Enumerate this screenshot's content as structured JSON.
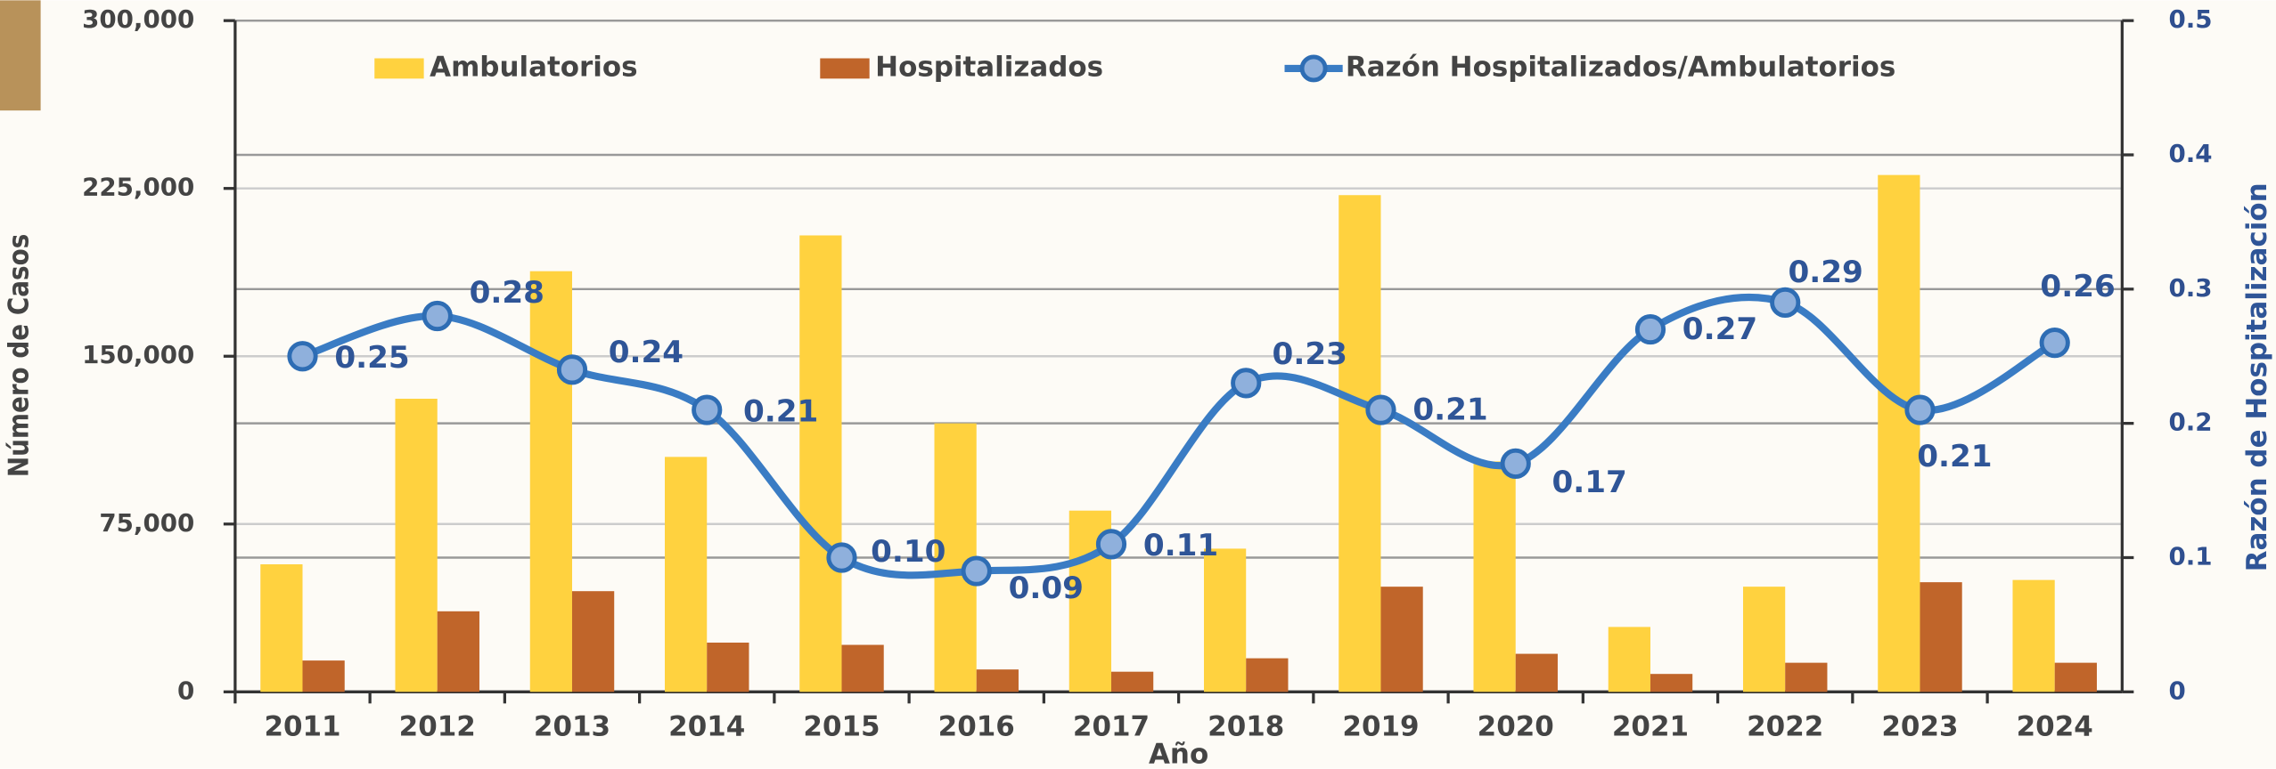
{
  "chart_data": {
    "type": "bar-line",
    "x_label": "Año",
    "y_label": "Número de Casos",
    "y2_label": "Razón de Hospitalización",
    "categories": [
      "2011",
      "2012",
      "2013",
      "2014",
      "2015",
      "2016",
      "2017",
      "2018",
      "2019",
      "2020",
      "2021",
      "2022",
      "2023",
      "2024"
    ],
    "series": [
      {
        "name": "Ambulatorios",
        "type": "bar",
        "color": "#ffd23f",
        "values": [
          57000,
          131000,
          188000,
          105000,
          204000,
          120000,
          81000,
          64000,
          222000,
          103000,
          29000,
          47000,
          231000,
          50000
        ]
      },
      {
        "name": "Hospitalizados",
        "type": "bar",
        "color": "#c0652a",
        "values": [
          14000,
          36000,
          45000,
          22000,
          21000,
          10000,
          9000,
          15000,
          47000,
          17000,
          8000,
          13000,
          49000,
          13000
        ]
      },
      {
        "name": "Razón Hospitalizados/Ambulatorios",
        "type": "line",
        "axis": "y2",
        "color": "#3a7cc4",
        "values": [
          0.25,
          0.28,
          0.24,
          0.21,
          0.1,
          0.09,
          0.11,
          0.23,
          0.21,
          0.17,
          0.27,
          0.29,
          0.21,
          0.26
        ],
        "value_labels": [
          "0.25",
          "0.28",
          "0.24",
          "0.21",
          "0.10",
          "0.09",
          "0.11",
          "0.23",
          "0.21",
          "0.17",
          "0.27",
          "0.29",
          "0.21",
          "0.26"
        ]
      }
    ],
    "ylim": [
      0,
      300000
    ],
    "yticks": [
      0,
      {
        "value": 75000,
        "label": "75,000"
      },
      {
        "value": 150000,
        "label": "150,000"
      },
      {
        "value": 225000,
        "label": "225,000"
      },
      {
        "value": 300000,
        "label": "300,000"
      }
    ],
    "y2lim": [
      0,
      0.5
    ],
    "y2ticks": [
      0,
      0.1,
      0.2,
      0.3,
      0.4,
      0.5
    ],
    "grid": true
  }
}
